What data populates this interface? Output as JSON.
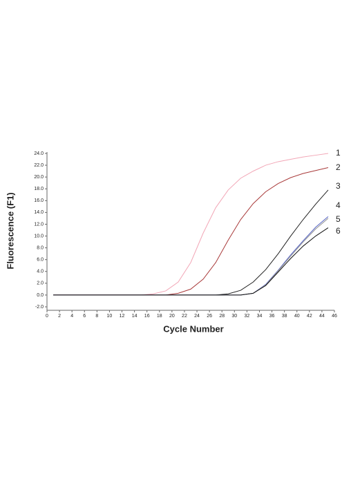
{
  "chart_data": {
    "type": "line",
    "x_label": "Cycle Number",
    "y_label": "Fluorescence (F1)",
    "x": [
      1,
      3,
      5,
      7,
      9,
      11,
      13,
      15,
      17,
      19,
      21,
      23,
      25,
      27,
      29,
      31,
      33,
      35,
      37,
      39,
      41,
      43,
      45
    ],
    "series": [
      {
        "name": "1",
        "color": "#f2a6b6",
        "values": [
          0,
          0,
          0,
          0,
          0,
          0,
          0,
          0,
          0.2,
          0.7,
          2.2,
          5.5,
          10.5,
          14.8,
          17.8,
          19.8,
          21.0,
          22.0,
          22.6,
          23.0,
          23.4,
          23.7,
          24.0
        ]
      },
      {
        "name": "2",
        "color": "#a83838",
        "values": [
          0,
          0,
          0,
          0,
          0,
          0,
          0,
          0,
          0,
          0,
          0.3,
          1.0,
          2.7,
          5.5,
          9.3,
          12.8,
          15.5,
          17.5,
          18.9,
          19.9,
          20.6,
          21.1,
          21.6
        ]
      },
      {
        "name": "3",
        "color": "#202020",
        "values": [
          0,
          0,
          0,
          0,
          0,
          0,
          0,
          0,
          0,
          0,
          0,
          0,
          0,
          0,
          0.2,
          0.8,
          2.2,
          4.3,
          7.0,
          10.0,
          12.8,
          15.4,
          17.8
        ]
      },
      {
        "name": "4",
        "color": "#5563c4",
        "values": [
          0,
          0,
          0,
          0,
          0,
          0,
          0,
          0,
          0,
          0,
          0,
          0,
          0,
          0,
          0,
          0,
          0.3,
          1.8,
          4.2,
          6.8,
          9.2,
          11.5,
          13.3
        ]
      },
      {
        "name": "5",
        "color": "#909090",
        "values": [
          0,
          0,
          0,
          0,
          0,
          0,
          0,
          0,
          0,
          0,
          0,
          0,
          0,
          0,
          0,
          0,
          0.3,
          1.7,
          4.1,
          6.6,
          9.0,
          11.2,
          13.0
        ]
      },
      {
        "name": "6",
        "color": "#111111",
        "values": [
          0,
          0,
          0,
          0,
          0,
          0,
          0,
          0,
          0,
          0,
          0,
          0,
          0,
          0,
          0,
          0,
          0.3,
          1.6,
          3.9,
          6.2,
          8.3,
          10.0,
          11.4
        ]
      }
    ],
    "xlim": [
      0,
      46
    ],
    "xticks": [
      0,
      2,
      4,
      6,
      8,
      10,
      12,
      14,
      16,
      18,
      20,
      22,
      24,
      26,
      28,
      30,
      32,
      34,
      36,
      38,
      40,
      42,
      44,
      46
    ],
    "ylim": [
      -2,
      24
    ],
    "yticks": [
      {
        "value": -2,
        "label": "-2.0"
      },
      {
        "value": 0,
        "label": "0.0"
      },
      {
        "value": 2,
        "label": "2.0"
      },
      {
        "value": 4,
        "label": "4.0"
      },
      {
        "value": 6,
        "label": "6.0"
      },
      {
        "value": 8,
        "label": "8.0"
      },
      {
        "value": 10,
        "label": "10.0"
      },
      {
        "value": 12,
        "label": "12.0"
      },
      {
        "value": 14,
        "label": "14.0"
      },
      {
        "value": 16,
        "label": "16.0"
      },
      {
        "value": 18,
        "label": "18.0"
      },
      {
        "value": 20,
        "label": "20.0"
      },
      {
        "value": 22,
        "label": "22.0"
      },
      {
        "value": 24,
        "label": "24.0"
      }
    ],
    "grid": false
  }
}
